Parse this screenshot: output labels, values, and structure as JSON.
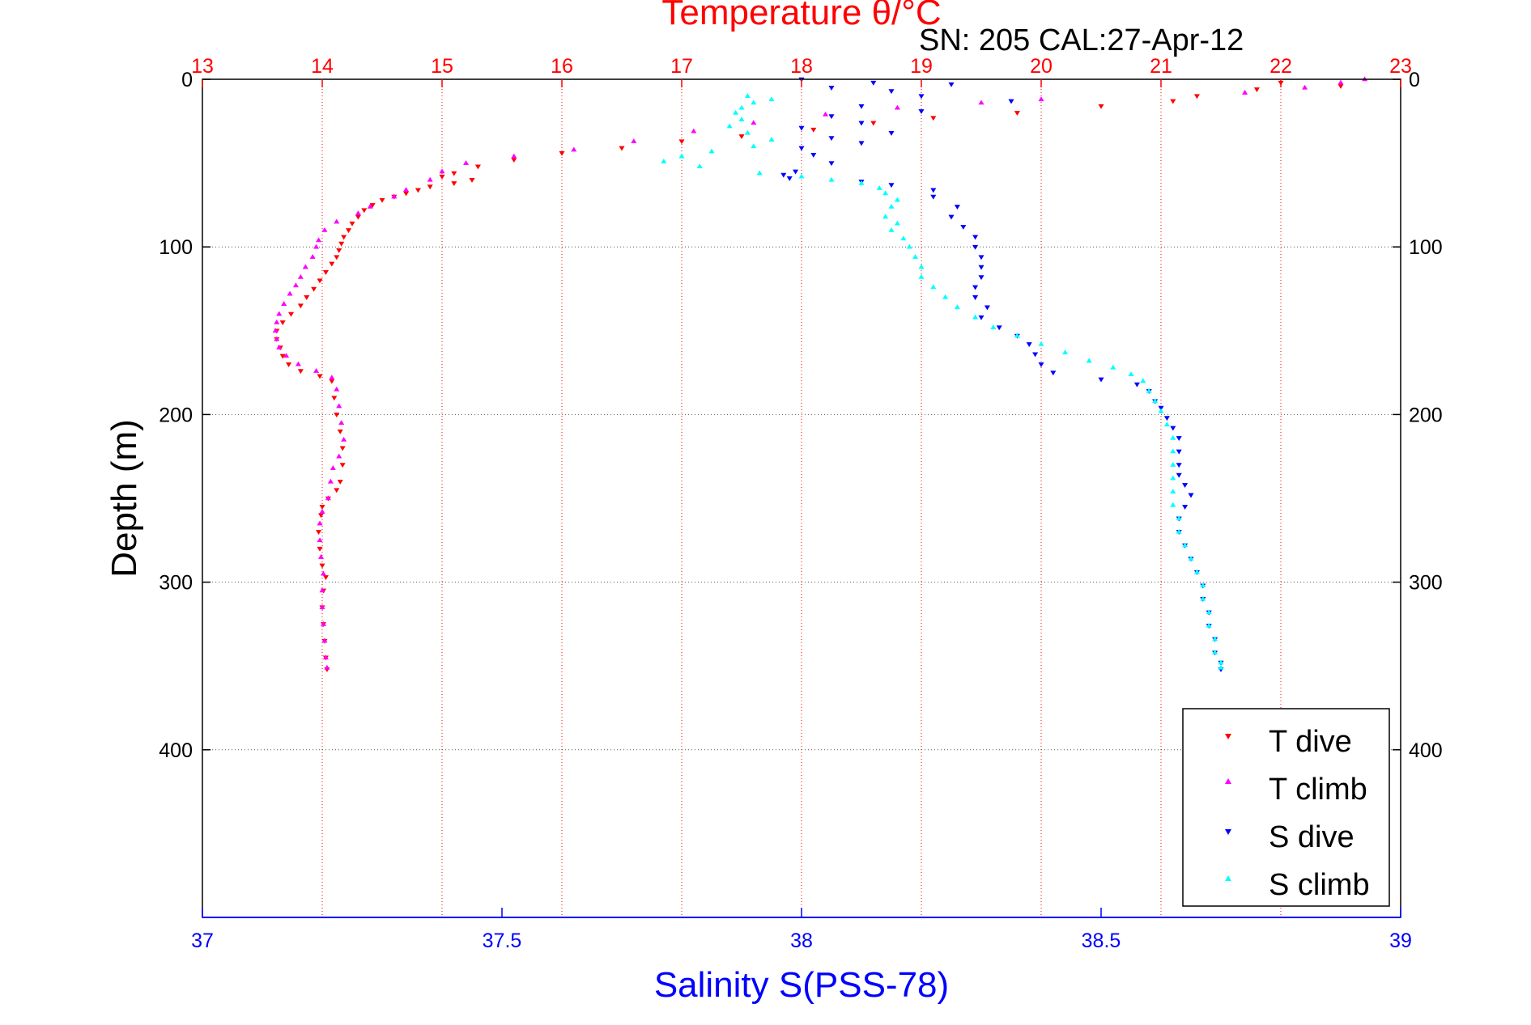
{
  "colors": {
    "temperature_axis": "#ff0000",
    "salinity_axis": "#0000ff",
    "t_dive": "#ff0000",
    "t_climb": "#ff00ff",
    "s_dive": "#0000ff",
    "s_climb": "#00ffff",
    "depth_grid": "#555555",
    "axis": "#000000"
  },
  "chart_data": {
    "type": "scatter",
    "title": "Temperature θ/°C",
    "subtitle": "SN: 205  CAL:27-Apr-12",
    "xlabel_top": "Temperature θ/°C",
    "xlabel_bottom": "Salinity S(PSS-78)",
    "ylabel": "Depth (m)",
    "temperature_axis": {
      "range": [
        13,
        23
      ],
      "ticks": [
        "13",
        "14",
        "15",
        "16",
        "17",
        "18",
        "19",
        "20",
        "21",
        "22",
        "23"
      ],
      "grid": true
    },
    "salinity_axis": {
      "range": [
        37,
        39
      ],
      "ticks": [
        "37",
        "37.5",
        "38",
        "38.5",
        "39"
      ]
    },
    "depth_axis": {
      "range": [
        0,
        500
      ],
      "reversed": true,
      "ticks": [
        "0",
        "100",
        "200",
        "300",
        "400"
      ],
      "grid": true
    },
    "legend": {
      "placement": "bottom-right",
      "entries": [
        "T dive",
        "T climb",
        "S dive",
        "S climb"
      ]
    },
    "series": [
      {
        "name": "T dive",
        "axis": "temperature",
        "marker": "triangle-down",
        "points": [
          [
            22.0,
            2
          ],
          [
            22.5,
            4
          ],
          [
            21.8,
            6
          ],
          [
            21.3,
            10
          ],
          [
            21.1,
            13
          ],
          [
            20.5,
            16
          ],
          [
            19.8,
            20
          ],
          [
            19.1,
            23
          ],
          [
            18.6,
            26
          ],
          [
            18.1,
            30
          ],
          [
            17.5,
            34
          ],
          [
            17.0,
            37
          ],
          [
            16.5,
            41
          ],
          [
            16.0,
            44
          ],
          [
            15.6,
            48
          ],
          [
            15.3,
            52
          ],
          [
            15.1,
            56
          ],
          [
            15.0,
            58
          ],
          [
            15.25,
            60
          ],
          [
            15.1,
            62
          ],
          [
            14.9,
            64
          ],
          [
            14.8,
            66
          ],
          [
            14.7,
            68
          ],
          [
            14.6,
            70
          ],
          [
            14.5,
            72
          ],
          [
            14.42,
            75
          ],
          [
            14.35,
            78
          ],
          [
            14.3,
            82
          ],
          [
            14.25,
            86
          ],
          [
            14.22,
            90
          ],
          [
            14.18,
            94
          ],
          [
            14.16,
            98
          ],
          [
            14.14,
            102
          ],
          [
            14.12,
            106
          ],
          [
            14.08,
            110
          ],
          [
            14.03,
            115
          ],
          [
            13.98,
            120
          ],
          [
            13.93,
            125
          ],
          [
            13.87,
            130
          ],
          [
            13.82,
            135
          ],
          [
            13.74,
            140
          ],
          [
            13.67,
            145
          ],
          [
            13.62,
            150
          ],
          [
            13.62,
            155
          ],
          [
            13.65,
            160
          ],
          [
            13.67,
            165
          ],
          [
            13.72,
            170
          ],
          [
            13.82,
            174
          ],
          [
            13.98,
            177
          ],
          [
            14.08,
            180
          ],
          [
            14.1,
            190
          ],
          [
            14.12,
            200
          ],
          [
            14.15,
            210
          ],
          [
            14.17,
            220
          ],
          [
            14.17,
            230
          ],
          [
            14.15,
            240
          ],
          [
            14.12,
            245
          ],
          [
            14.05,
            250
          ],
          [
            14.0,
            255
          ],
          [
            13.99,
            260
          ],
          [
            13.97,
            270
          ],
          [
            13.98,
            280
          ],
          [
            14.0,
            290
          ],
          [
            14.03,
            297
          ],
          [
            14.01,
            305
          ],
          [
            14.0,
            315
          ],
          [
            14.01,
            325
          ],
          [
            14.02,
            335
          ],
          [
            14.03,
            345
          ],
          [
            14.04,
            352
          ]
        ]
      },
      {
        "name": "T climb",
        "axis": "temperature",
        "marker": "triangle-up",
        "points": [
          [
            22.7,
            0
          ],
          [
            22.5,
            2
          ],
          [
            22.2,
            5
          ],
          [
            21.7,
            8
          ],
          [
            20.0,
            12
          ],
          [
            19.5,
            14
          ],
          [
            18.8,
            17
          ],
          [
            18.2,
            21
          ],
          [
            17.6,
            26
          ],
          [
            17.1,
            31
          ],
          [
            16.6,
            37
          ],
          [
            16.1,
            42
          ],
          [
            15.6,
            46
          ],
          [
            15.2,
            50
          ],
          [
            15.0,
            55
          ],
          [
            14.9,
            60
          ],
          [
            14.7,
            66
          ],
          [
            14.6,
            70
          ],
          [
            14.4,
            76
          ],
          [
            14.3,
            80
          ],
          [
            14.12,
            85
          ],
          [
            14.02,
            90
          ],
          [
            13.97,
            96
          ],
          [
            13.95,
            100
          ],
          [
            13.92,
            106
          ],
          [
            13.86,
            112
          ],
          [
            13.82,
            118
          ],
          [
            13.78,
            123
          ],
          [
            13.73,
            128
          ],
          [
            13.68,
            134
          ],
          [
            13.64,
            140
          ],
          [
            13.62,
            145
          ],
          [
            13.61,
            150
          ],
          [
            13.62,
            155
          ],
          [
            13.64,
            160
          ],
          [
            13.7,
            165
          ],
          [
            13.8,
            170
          ],
          [
            13.95,
            174
          ],
          [
            14.08,
            178
          ],
          [
            14.12,
            185
          ],
          [
            14.14,
            195
          ],
          [
            14.16,
            205
          ],
          [
            14.18,
            215
          ],
          [
            14.14,
            225
          ],
          [
            14.09,
            232
          ],
          [
            14.07,
            240
          ],
          [
            14.05,
            250
          ],
          [
            14.0,
            258
          ],
          [
            13.98,
            265
          ],
          [
            13.98,
            275
          ],
          [
            13.99,
            285
          ],
          [
            14.01,
            295
          ],
          [
            14.0,
            305
          ],
          [
            14.0,
            315
          ],
          [
            14.01,
            325
          ],
          [
            14.02,
            335
          ],
          [
            14.03,
            345
          ],
          [
            14.04,
            351
          ]
        ]
      },
      {
        "name": "S dive",
        "axis": "salinity",
        "marker": "triangle-down",
        "points": [
          [
            38.0,
            0
          ],
          [
            38.12,
            2
          ],
          [
            38.25,
            3
          ],
          [
            38.05,
            5
          ],
          [
            38.15,
            7
          ],
          [
            38.2,
            10
          ],
          [
            38.35,
            13
          ],
          [
            38.1,
            16
          ],
          [
            38.2,
            19
          ],
          [
            38.05,
            22
          ],
          [
            38.1,
            26
          ],
          [
            38.0,
            29
          ],
          [
            38.15,
            32
          ],
          [
            38.05,
            35
          ],
          [
            38.1,
            38
          ],
          [
            38.0,
            41
          ],
          [
            38.02,
            45
          ],
          [
            38.05,
            50
          ],
          [
            37.99,
            55
          ],
          [
            37.97,
            57
          ],
          [
            37.98,
            59
          ],
          [
            38.1,
            61
          ],
          [
            38.15,
            63
          ],
          [
            38.22,
            66
          ],
          [
            38.22,
            70
          ],
          [
            38.26,
            76
          ],
          [
            38.25,
            82
          ],
          [
            38.27,
            88
          ],
          [
            38.29,
            94
          ],
          [
            38.29,
            100
          ],
          [
            38.3,
            106
          ],
          [
            38.3,
            112
          ],
          [
            38.3,
            118
          ],
          [
            38.29,
            124
          ],
          [
            38.29,
            130
          ],
          [
            38.31,
            136
          ],
          [
            38.3,
            142
          ],
          [
            38.33,
            148
          ],
          [
            38.36,
            153
          ],
          [
            38.38,
            158
          ],
          [
            38.39,
            164
          ],
          [
            38.4,
            170
          ],
          [
            38.42,
            175
          ],
          [
            38.5,
            179
          ],
          [
            38.56,
            182
          ],
          [
            38.58,
            186
          ],
          [
            38.59,
            192
          ],
          [
            38.6,
            196
          ],
          [
            38.61,
            202
          ],
          [
            38.62,
            208
          ],
          [
            38.63,
            214
          ],
          [
            38.63,
            222
          ],
          [
            38.63,
            230
          ],
          [
            38.63,
            236
          ],
          [
            38.64,
            242
          ],
          [
            38.65,
            248
          ],
          [
            38.64,
            255
          ],
          [
            38.63,
            262
          ],
          [
            38.63,
            270
          ],
          [
            38.64,
            278
          ],
          [
            38.65,
            286
          ],
          [
            38.66,
            294
          ],
          [
            38.67,
            302
          ],
          [
            38.67,
            310
          ],
          [
            38.68,
            318
          ],
          [
            38.68,
            326
          ],
          [
            38.69,
            334
          ],
          [
            38.69,
            342
          ],
          [
            38.7,
            348
          ],
          [
            38.7,
            352
          ]
        ]
      },
      {
        "name": "S climb",
        "axis": "salinity",
        "marker": "triangle-up",
        "points": [
          [
            37.91,
            10
          ],
          [
            37.95,
            12
          ],
          [
            37.92,
            14
          ],
          [
            37.9,
            17
          ],
          [
            37.89,
            20
          ],
          [
            37.9,
            24
          ],
          [
            37.88,
            28
          ],
          [
            37.91,
            32
          ],
          [
            37.95,
            36
          ],
          [
            37.92,
            40
          ],
          [
            37.85,
            43
          ],
          [
            37.8,
            46
          ],
          [
            37.77,
            49
          ],
          [
            37.83,
            52
          ],
          [
            37.93,
            56
          ],
          [
            38.0,
            58
          ],
          [
            38.05,
            60
          ],
          [
            38.1,
            62
          ],
          [
            38.13,
            65
          ],
          [
            38.14,
            68
          ],
          [
            38.16,
            72
          ],
          [
            38.15,
            76
          ],
          [
            38.14,
            82
          ],
          [
            38.16,
            86
          ],
          [
            38.15,
            90
          ],
          [
            38.17,
            95
          ],
          [
            38.18,
            100
          ],
          [
            38.19,
            106
          ],
          [
            38.2,
            112
          ],
          [
            38.2,
            118
          ],
          [
            38.22,
            124
          ],
          [
            38.24,
            130
          ],
          [
            38.26,
            136
          ],
          [
            38.29,
            142
          ],
          [
            38.32,
            148
          ],
          [
            38.36,
            153
          ],
          [
            38.4,
            158
          ],
          [
            38.44,
            163
          ],
          [
            38.48,
            168
          ],
          [
            38.52,
            172
          ],
          [
            38.55,
            176
          ],
          [
            38.57,
            180
          ],
          [
            38.58,
            186
          ],
          [
            38.59,
            192
          ],
          [
            38.6,
            198
          ],
          [
            38.61,
            206
          ],
          [
            38.62,
            214
          ],
          [
            38.62,
            222
          ],
          [
            38.62,
            230
          ],
          [
            38.62,
            238
          ],
          [
            38.62,
            246
          ],
          [
            38.62,
            254
          ],
          [
            38.63,
            262
          ],
          [
            38.63,
            270
          ],
          [
            38.64,
            278
          ],
          [
            38.65,
            286
          ],
          [
            38.66,
            294
          ],
          [
            38.67,
            302
          ],
          [
            38.67,
            310
          ],
          [
            38.68,
            318
          ],
          [
            38.68,
            326
          ],
          [
            38.69,
            334
          ],
          [
            38.69,
            342
          ],
          [
            38.7,
            348
          ],
          [
            38.7,
            351
          ]
        ]
      }
    ]
  }
}
